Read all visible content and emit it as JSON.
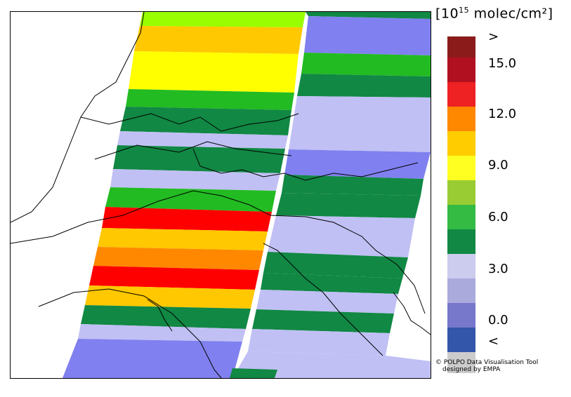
{
  "legend": {
    "title_prefix": "[10",
    "title_exponent": "15",
    "title_suffix": " molec/cm²]",
    "labels": [
      ">",
      "15.0",
      "12.0",
      "9.0",
      "6.0",
      "3.0",
      "0.0",
      "<"
    ],
    "colors": [
      "#8b1a1a",
      "#b01020",
      "#ee2222",
      "#ff8800",
      "#ffcc00",
      "#ffff22",
      "#99cc33",
      "#33bb44",
      "#118844",
      "#ccccee",
      "#aaaadd",
      "#7777cc",
      "#3355aa",
      "#cccccc"
    ]
  },
  "credit": {
    "line1": "© POLPO Data Visualisation Tool",
    "line2": "designed by EMPA"
  },
  "map_data": {
    "type": "satellite swath map (tropospheric column)",
    "palette": {
      "dark_green": "#118844",
      "green": "#22bb22",
      "lavender": "#c0c0f4",
      "blue": "#8080f0",
      "yellow": "#ffff00",
      "gold": "#ffc800",
      "orange": "#ff8800",
      "red": "#ff0000",
      "lime": "#99ff00"
    }
  }
}
